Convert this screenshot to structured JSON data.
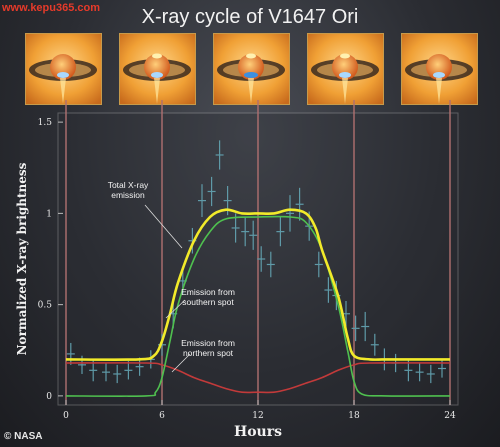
{
  "watermark": "www.kepu365.com",
  "credit": "© NASA",
  "thumbnails": [
    {
      "spot": "southern"
    },
    {
      "spot": "both"
    },
    {
      "spot": "northern"
    },
    {
      "spot": "both"
    },
    {
      "spot": "southern"
    }
  ],
  "colors": {
    "total": "#f2ea2a",
    "southern": "#4fc04f",
    "northern": "#c23a3a",
    "data": "#5f9aa8",
    "vline": "#b07070",
    "frame": "#bbbbbb"
  },
  "chart_data": {
    "type": "line",
    "title": "X-ray cycle of V1647 Ori",
    "xlabel": "Hours",
    "ylabel": "Normalized X-ray brightness",
    "xlim": [
      -0.5,
      24.5
    ],
    "ylim": [
      -0.05,
      1.55
    ],
    "xticks": [
      0,
      6,
      12,
      18,
      24
    ],
    "yticks": [
      0,
      0.5,
      1,
      1.5
    ],
    "ytick_labels": [
      "0",
      "0.5",
      "1",
      "1.5"
    ],
    "vlines": [
      0,
      6,
      12,
      18,
      24
    ],
    "annotations": [
      {
        "text": "Total X-ray\nemission",
        "series": "total"
      },
      {
        "text": "Emission from\nsouthern spot",
        "series": "southern"
      },
      {
        "text": "Emission from\nnorthern spot",
        "series": "northern"
      }
    ],
    "series": [
      {
        "key": "total",
        "x": [
          0,
          4.5,
          5.5,
          6,
          6.5,
          7,
          8,
          9,
          10,
          11,
          12,
          13,
          14,
          15,
          15.6,
          16,
          17,
          17.6,
          18,
          19,
          20,
          22,
          24
        ],
        "values": [
          0.2,
          0.2,
          0.22,
          0.3,
          0.45,
          0.62,
          0.85,
          0.98,
          1.02,
          1.0,
          1.0,
          1.0,
          1.02,
          1.0,
          0.92,
          0.8,
          0.55,
          0.32,
          0.22,
          0.2,
          0.2,
          0.2,
          0.2
        ]
      },
      {
        "key": "southern",
        "x": [
          0,
          5,
          5.6,
          6,
          6.5,
          7,
          8,
          9,
          10,
          12,
          14,
          15,
          16,
          17,
          17.6,
          18,
          18.5,
          20,
          24
        ],
        "values": [
          0.0,
          0.0,
          0.02,
          0.1,
          0.3,
          0.5,
          0.75,
          0.9,
          0.97,
          0.98,
          0.98,
          0.95,
          0.8,
          0.5,
          0.25,
          0.08,
          0.01,
          0.0,
          0.0
        ]
      },
      {
        "key": "northern",
        "x": [
          0,
          5,
          6,
          7,
          8,
          9,
          10,
          11,
          12,
          13,
          14,
          15,
          16,
          17,
          18,
          19,
          24
        ],
        "values": [
          0.18,
          0.18,
          0.17,
          0.14,
          0.1,
          0.07,
          0.04,
          0.02,
          0.02,
          0.02,
          0.04,
          0.07,
          0.1,
          0.14,
          0.17,
          0.18,
          0.18
        ]
      },
      {
        "key": "data",
        "points": [
          {
            "x": 0.3,
            "y": 0.23,
            "e": 0.06
          },
          {
            "x": 1.0,
            "y": 0.17,
            "e": 0.05
          },
          {
            "x": 1.7,
            "y": 0.14,
            "e": 0.06
          },
          {
            "x": 2.5,
            "y": 0.13,
            "e": 0.05
          },
          {
            "x": 3.2,
            "y": 0.12,
            "e": 0.05
          },
          {
            "x": 3.9,
            "y": 0.14,
            "e": 0.05
          },
          {
            "x": 4.6,
            "y": 0.16,
            "e": 0.05
          },
          {
            "x": 5.3,
            "y": 0.2,
            "e": 0.05
          },
          {
            "x": 6.0,
            "y": 0.28,
            "e": 0.06
          },
          {
            "x": 6.7,
            "y": 0.45,
            "e": 0.08
          },
          {
            "x": 7.3,
            "y": 0.63,
            "e": 0.07
          },
          {
            "x": 7.9,
            "y": 0.85,
            "e": 0.07
          },
          {
            "x": 8.5,
            "y": 1.07,
            "e": 0.09
          },
          {
            "x": 9.1,
            "y": 1.12,
            "e": 0.08
          },
          {
            "x": 9.6,
            "y": 1.32,
            "e": 0.08
          },
          {
            "x": 10.1,
            "y": 1.07,
            "e": 0.08
          },
          {
            "x": 10.6,
            "y": 0.92,
            "e": 0.08
          },
          {
            "x": 11.2,
            "y": 0.9,
            "e": 0.08
          },
          {
            "x": 11.7,
            "y": 0.88,
            "e": 0.08
          },
          {
            "x": 12.2,
            "y": 0.75,
            "e": 0.07
          },
          {
            "x": 12.8,
            "y": 0.72,
            "e": 0.07
          },
          {
            "x": 13.4,
            "y": 0.9,
            "e": 0.08
          },
          {
            "x": 14.0,
            "y": 1.0,
            "e": 0.1
          },
          {
            "x": 14.6,
            "y": 1.05,
            "e": 0.09
          },
          {
            "x": 15.2,
            "y": 0.93,
            "e": 0.08
          },
          {
            "x": 15.8,
            "y": 0.72,
            "e": 0.07
          },
          {
            "x": 16.4,
            "y": 0.58,
            "e": 0.07
          },
          {
            "x": 16.9,
            "y": 0.55,
            "e": 0.08
          },
          {
            "x": 17.5,
            "y": 0.45,
            "e": 0.07
          },
          {
            "x": 18.1,
            "y": 0.37,
            "e": 0.07
          },
          {
            "x": 18.7,
            "y": 0.38,
            "e": 0.08
          },
          {
            "x": 19.3,
            "y": 0.28,
            "e": 0.06
          },
          {
            "x": 19.9,
            "y": 0.2,
            "e": 0.06
          },
          {
            "x": 20.6,
            "y": 0.18,
            "e": 0.05
          },
          {
            "x": 21.4,
            "y": 0.14,
            "e": 0.06
          },
          {
            "x": 22.1,
            "y": 0.13,
            "e": 0.05
          },
          {
            "x": 22.8,
            "y": 0.12,
            "e": 0.05
          },
          {
            "x": 23.5,
            "y": 0.15,
            "e": 0.05
          }
        ]
      }
    ]
  }
}
